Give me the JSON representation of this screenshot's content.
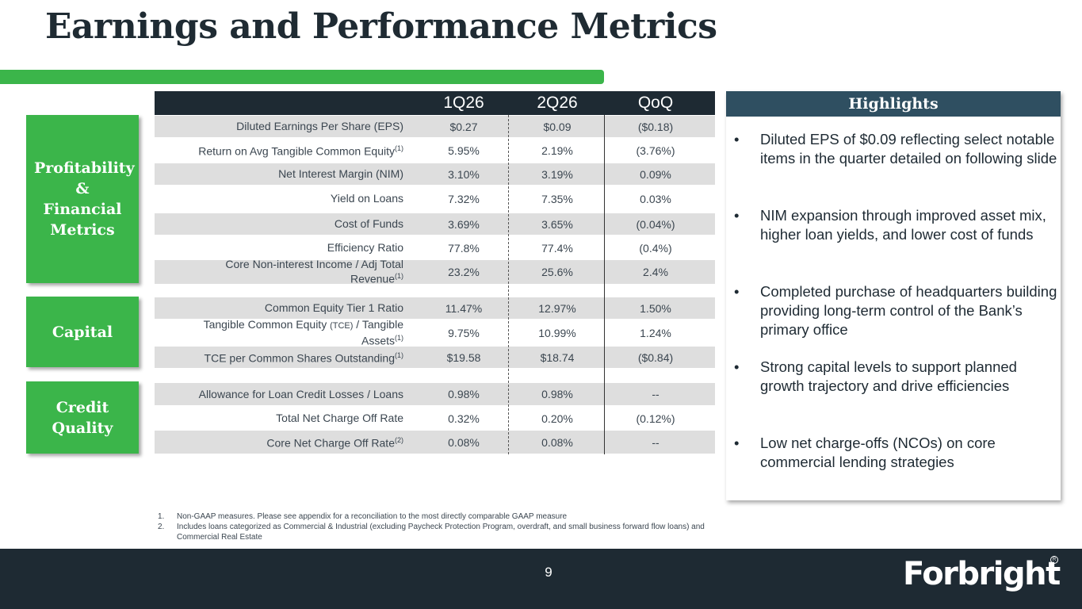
{
  "title": "Earnings and Performance Metrics",
  "table": {
    "headers": [
      "1Q26",
      "2Q26",
      "QoQ"
    ]
  },
  "sections": {
    "profitability": {
      "label": "Profitability & Financial Metrics",
      "rows": [
        {
          "label": "Diluted Earnings Per Share (EPS)",
          "q1": "$0.27",
          "q2": "$0.09",
          "qoq": "($0.18)"
        },
        {
          "label": "Return on Avg Tangible Common Equity",
          "sup": "(1)",
          "q1": "5.95%",
          "q2": "2.19%",
          "qoq": "(3.76%)"
        },
        {
          "label": "Net Interest Margin (NIM)",
          "q1": "3.10%",
          "q2": "3.19%",
          "qoq": "0.09%"
        },
        {
          "label": "Yield on Loans",
          "q1": "7.32%",
          "q2": "7.35%",
          "qoq": "0.03%"
        },
        {
          "label": "Cost of Funds",
          "q1": "3.69%",
          "q2": "3.65%",
          "qoq": "(0.04%)"
        },
        {
          "label": "Efficiency Ratio",
          "q1": "77.8%",
          "q2": "77.4%",
          "qoq": "(0.4%)"
        },
        {
          "label_line1": "Core Non-interest Income / Adj Total",
          "label_line2": "Revenue",
          "sup": "(1)",
          "q1": "23.2%",
          "q2": "25.6%",
          "qoq": "2.4%"
        }
      ]
    },
    "capital": {
      "label": "Capital",
      "rows": [
        {
          "label": "Common Equity Tier 1 Ratio",
          "q1": "11.47%",
          "q2": "12.97%",
          "qoq": "1.50%"
        },
        {
          "label_pre": "Tangible Common Equity ",
          "label_small": "(TCE)",
          "label_post": " / Tangible",
          "label_line2": "Assets",
          "sup": "(1)",
          "q1": "9.75%",
          "q2": "10.99%",
          "qoq": "1.24%"
        },
        {
          "label": "TCE per Common Shares Outstanding",
          "sup": "(1)",
          "q1": "$19.58",
          "q2": "$18.74",
          "qoq": "($0.84)"
        }
      ]
    },
    "credit": {
      "label": "Credit Quality",
      "rows": [
        {
          "label": "Allowance for Loan Credit Losses / Loans",
          "q1": "0.98%",
          "q2": "0.98%",
          "qoq": "--"
        },
        {
          "label": "Total Net Charge Off Rate",
          "q1": "0.32%",
          "q2": "0.20%",
          "qoq": "(0.12%)"
        },
        {
          "label": "Core Net Charge Off Rate",
          "sup": "(2)",
          "q1": "0.08%",
          "q2": "0.08%",
          "qoq": "--"
        }
      ]
    }
  },
  "highlights": {
    "title": "Highlights",
    "bullet": "•",
    "items": [
      "Diluted EPS of $0.09 reflecting select notable items in the quarter detailed on following slide",
      "NIM expansion through improved asset mix, higher loan yields, and lower cost of funds",
      "Completed purchase of headquarters building providing long-term control of the Bank’s primary office",
      "Strong capital levels to support planned growth trajectory and drive efficiencies",
      "Low net charge-offs (NCOs) on core commercial lending strategies"
    ]
  },
  "footnotes": [
    {
      "num": "1.",
      "text": "Non-GAAP measures. Please see appendix for a reconciliation to the most directly comparable GAAP measure"
    },
    {
      "num": "2.",
      "text": "Includes loans categorized as Commercial & Industrial (excluding Paycheck Protection Program, overdraft, and small business forward flow loans) and Commercial Real Estate"
    }
  ],
  "footer": {
    "page_number": "9",
    "logo_text": "Forbright",
    "logo_reg": "R"
  },
  "colors": {
    "accent_green": "#3bb54a",
    "navy": "#1e2a33",
    "highlight_header": "#2f4f61",
    "row_shade": "#dedede"
  }
}
